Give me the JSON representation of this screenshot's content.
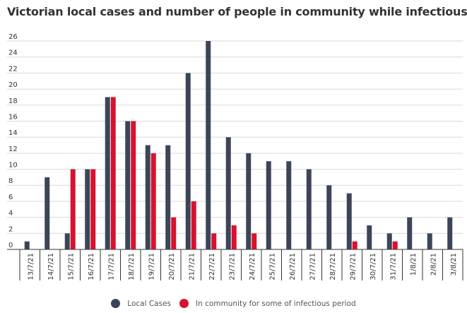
{
  "title": "Victorian local cases and number of people in community while infectious",
  "legend": {
    "local_cases": "Local Cases",
    "in_community": "In community for some of infectious period"
  },
  "colors": {
    "local_cases": "#3c4558",
    "in_community": "#d7122f",
    "grid": "#d9d9d9",
    "axis": "#333333"
  },
  "chart_data": {
    "type": "bar",
    "title": "Victorian local cases and number of people in community while infectious",
    "xlabel": "",
    "ylabel": "",
    "ylim": [
      0,
      26
    ],
    "yticks": [
      0,
      2,
      4,
      6,
      8,
      10,
      12,
      14,
      16,
      18,
      20,
      22,
      24,
      26
    ],
    "grid": true,
    "legend_position": "bottom-center",
    "categories": [
      "13/7/21",
      "14/7/21",
      "15/7/21",
      "16/7/21",
      "17/7/21",
      "18/7/21",
      "19/7/21",
      "20/7/21",
      "21/7/21",
      "22/7/21",
      "23/7/21",
      "24/7/21",
      "25/7/21",
      "26/7/21",
      "27/7/21",
      "28/7/21",
      "29/7/21",
      "30/7/21",
      "31/7/21",
      "1/8/21",
      "2/8/21",
      "3/8/21"
    ],
    "series": [
      {
        "name": "Local Cases",
        "values": [
          1,
          9,
          2,
          10,
          19,
          16,
          13,
          13,
          22,
          26,
          14,
          12,
          11,
          11,
          10,
          8,
          7,
          3,
          2,
          4,
          2,
          4
        ]
      },
      {
        "name": "In community for some of infectious period",
        "values": [
          0,
          0,
          10,
          10,
          19,
          16,
          12,
          4,
          6,
          2,
          3,
          2,
          0,
          0,
          0,
          0,
          1,
          0,
          1,
          0,
          0,
          0
        ]
      }
    ]
  }
}
